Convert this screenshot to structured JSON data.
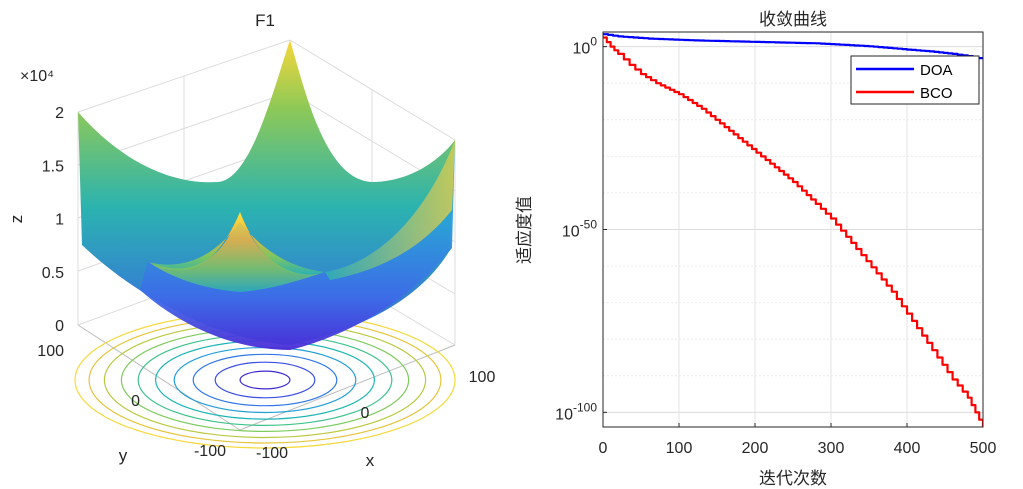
{
  "chart_data": [
    {
      "type": "surface3d",
      "title": "F1",
      "xlabel": "x",
      "ylabel": "y",
      "zlabel": "z",
      "function": "z = x^2 + y^2",
      "x_ticks": [
        "-100",
        "0",
        "100"
      ],
      "y_ticks": [
        "-100",
        "0",
        "100"
      ],
      "z_ticks": [
        "0",
        "0.5",
        "1",
        "1.5",
        "2"
      ],
      "z_exponent_label": "×10⁴",
      "xlim": [
        -100,
        100
      ],
      "ylim": [
        -100,
        100
      ],
      "zlim": [
        0,
        20000
      ],
      "contour_levels": [
        300,
        1200,
        2500,
        4000,
        5800,
        7800,
        10000,
        12500,
        15000,
        17500
      ]
    },
    {
      "type": "line",
      "yscale": "log",
      "title": "收敛曲线",
      "xlabel": "迭代次数",
      "ylabel": "适应度值",
      "x_ticks": [
        "0",
        "100",
        "200",
        "300",
        "400",
        "500"
      ],
      "y_ticks": [
        {
          "base": "10",
          "exp": "0",
          "value_log10": 0
        },
        {
          "base": "10",
          "exp": "-50",
          "value_log10": -50
        },
        {
          "base": "10",
          "exp": "-100",
          "value_log10": -100
        }
      ],
      "xlim": [
        0,
        500
      ],
      "ylim_log10": [
        -104,
        4
      ],
      "legend_position": "top-right",
      "series": [
        {
          "name": "DOA",
          "color": "#0000ff",
          "x": [
            0,
            20,
            60,
            120,
            200,
            280,
            350,
            400,
            430,
            460,
            480,
            500
          ],
          "log10_y": [
            3.4,
            2.8,
            2.2,
            1.7,
            1.3,
            0.9,
            0.1,
            -0.8,
            -1.3,
            -2.0,
            -2.6,
            -3.4
          ]
        },
        {
          "name": "BCO",
          "color": "#ff0000",
          "x": [
            0,
            10,
            20,
            35,
            50,
            70,
            100,
            130,
            160,
            190,
            220,
            250,
            280,
            300,
            320,
            340,
            360,
            380,
            400,
            420,
            440,
            460,
            480,
            490,
            500
          ],
          "log10_y": [
            2.5,
            0,
            -2,
            -5,
            -7.5,
            -10,
            -13,
            -17,
            -22,
            -27,
            -32,
            -37,
            -43,
            -47,
            -52,
            -57,
            -62,
            -67,
            -73,
            -79,
            -85,
            -91,
            -96,
            -100,
            -104
          ]
        }
      ]
    }
  ]
}
